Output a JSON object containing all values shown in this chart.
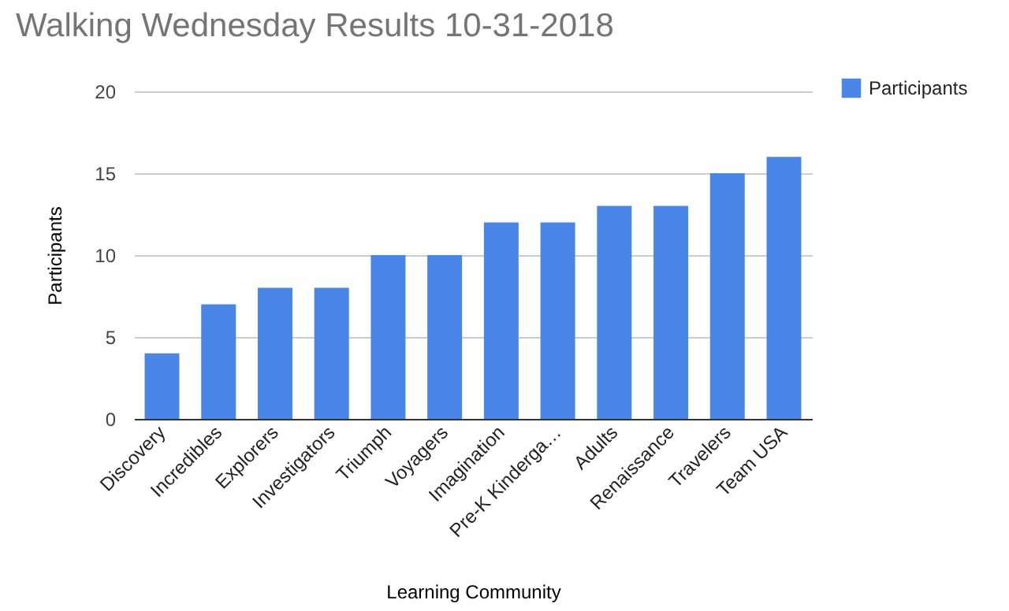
{
  "chart_data": {
    "type": "bar",
    "title": "Walking Wednesday Results 10-31-2018",
    "xlabel": "Learning Community",
    "ylabel": "Participants",
    "categories": [
      "Discovery",
      "Incredibles",
      "Explorers",
      "Investigators",
      "Triumph",
      "Voyagers",
      "Imagination",
      "Pre-K Kinderga…",
      "Adults",
      "Renaissance",
      "Travelers",
      "Team USA"
    ],
    "series": [
      {
        "name": "Participants",
        "color": "#4a86e8",
        "values": [
          4,
          7,
          8,
          8,
          10,
          10,
          12,
          12,
          13,
          13,
          15,
          16
        ]
      }
    ],
    "ylim": [
      0,
      20
    ],
    "yticks": [
      0,
      5,
      10,
      15,
      20
    ],
    "grid": "y",
    "legend": "top right"
  }
}
